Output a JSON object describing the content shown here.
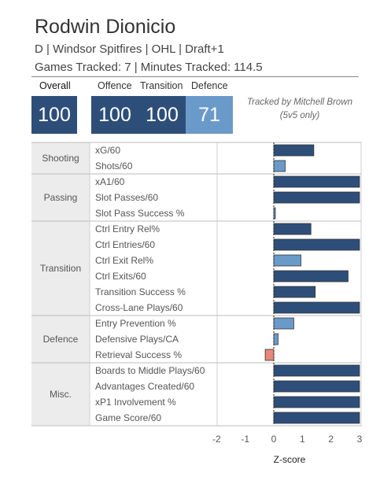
{
  "player": {
    "name": "Rodwin Dionicio",
    "subtitle": "D | Windsor Spitfires | OHL | Draft+1",
    "tracking": "Games Tracked: 7 | Minutes Tracked: 114.5"
  },
  "tracked_by": [
    "Tracked by Mitchell Brown",
    "(5v5 only)"
  ],
  "scores": [
    {
      "label": "Overall",
      "value": "100",
      "color": "#2e4e7a"
    },
    {
      "label": "Offence",
      "value": "100",
      "color": "#2e4e7a"
    },
    {
      "label": "Transition",
      "value": "100",
      "color": "#2e4e7a"
    },
    {
      "label": "Defence",
      "value": "71",
      "color": "#6a9ac9"
    }
  ],
  "chart_data": {
    "type": "bar",
    "orientation": "horizontal",
    "xlabel": "Z-score",
    "xlim": [
      -2,
      3
    ],
    "xticks": [
      "-2",
      "-1",
      "0",
      "1",
      "2",
      "3"
    ],
    "groups": [
      {
        "name": "Shooting",
        "metrics": [
          {
            "label": "xG/60",
            "value": 1.4
          },
          {
            "label": "Shots/60",
            "value": 0.4
          }
        ]
      },
      {
        "name": "Passing",
        "metrics": [
          {
            "label": "xA1/60",
            "value": 3.0
          },
          {
            "label": "Slot Passes/60",
            "value": 3.0
          },
          {
            "label": "Slot Pass Success %",
            "value": 0.05
          }
        ]
      },
      {
        "name": "Transition",
        "metrics": [
          {
            "label": "Ctrl Entry Rel%",
            "value": 1.3
          },
          {
            "label": "Ctrl Entries/60",
            "value": 3.0
          },
          {
            "label": "Ctrl Exit Rel%",
            "value": 0.95
          },
          {
            "label": "Ctrl Exits/60",
            "value": 2.6
          },
          {
            "label": "Transition Success %",
            "value": 1.45
          },
          {
            "label": "Cross-Lane Plays/60",
            "value": 3.0
          }
        ]
      },
      {
        "name": "Defence",
        "metrics": [
          {
            "label": "Entry Prevention %",
            "value": 0.7
          },
          {
            "label": "Defensive Plays/CA",
            "value": 0.15
          },
          {
            "label": "Retrieval Success %",
            "value": -0.3
          }
        ]
      },
      {
        "name": "Misc.",
        "metrics": [
          {
            "label": "Boards to Middle Plays/60",
            "value": 3.0
          },
          {
            "label": "Advantages Created/60",
            "value": 3.0
          },
          {
            "label": "xP1 Involvement %",
            "value": 3.0
          },
          {
            "label": "Game Score/60",
            "value": 3.0
          }
        ]
      }
    ],
    "colors": {
      "positive": "#2e4e7a",
      "positive_light": "#6a9ac9",
      "negative": "#e8877a"
    }
  }
}
